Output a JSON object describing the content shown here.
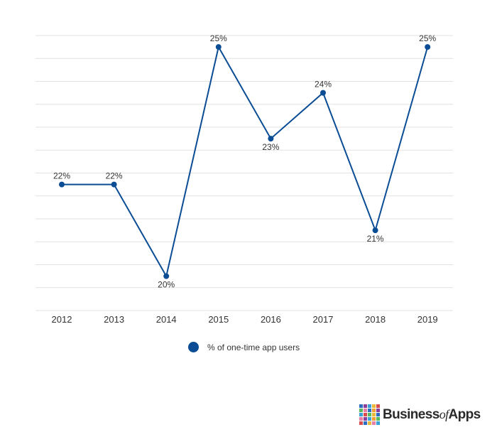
{
  "chart_data": {
    "type": "line",
    "categories": [
      "2012",
      "2013",
      "2014",
      "2015",
      "2016",
      "2017",
      "2018",
      "2019"
    ],
    "series": [
      {
        "name": "% of one-time app users",
        "values": [
          22,
          22,
          20,
          25,
          23,
          24,
          21,
          25
        ],
        "labels": [
          "22%",
          "22%",
          "20%",
          "25%",
          "23%",
          "24%",
          "21%",
          "25%"
        ],
        "label_positions": [
          "above",
          "above",
          "below",
          "above",
          "below",
          "above",
          "below",
          "above"
        ]
      }
    ],
    "title": "",
    "xlabel": "",
    "ylabel": "",
    "ylim": [
      19.25,
      25.25
    ],
    "y_tick_labels_shown": false,
    "grid": "horizontal",
    "legend_position": "bottom-center",
    "colors": {
      "series": "#0b4d94",
      "grid": "#e2e2e2",
      "text": "#333333"
    }
  },
  "legend": {
    "label": "% of one-time app users"
  },
  "logo": {
    "word_business": "Business",
    "word_of": "of",
    "word_apps": "Apps",
    "tile_colors": [
      "#2d6cc0",
      "#8a3f9c",
      "#3aa0d8",
      "#e8b93a",
      "#d94c4c",
      "#5cb85c",
      "#e77fa7",
      "#2d6cc0",
      "#f0a030",
      "#8a3f9c",
      "#3aa0d8",
      "#d94c4c",
      "#5cb85c",
      "#e8b93a",
      "#2d6cc0",
      "#e77fa7",
      "#8a3f9c",
      "#3aa0d8",
      "#f0a030",
      "#5cb85c",
      "#d94c4c",
      "#2d6cc0",
      "#e8b93a",
      "#e77fa7",
      "#3aa0d8"
    ]
  }
}
